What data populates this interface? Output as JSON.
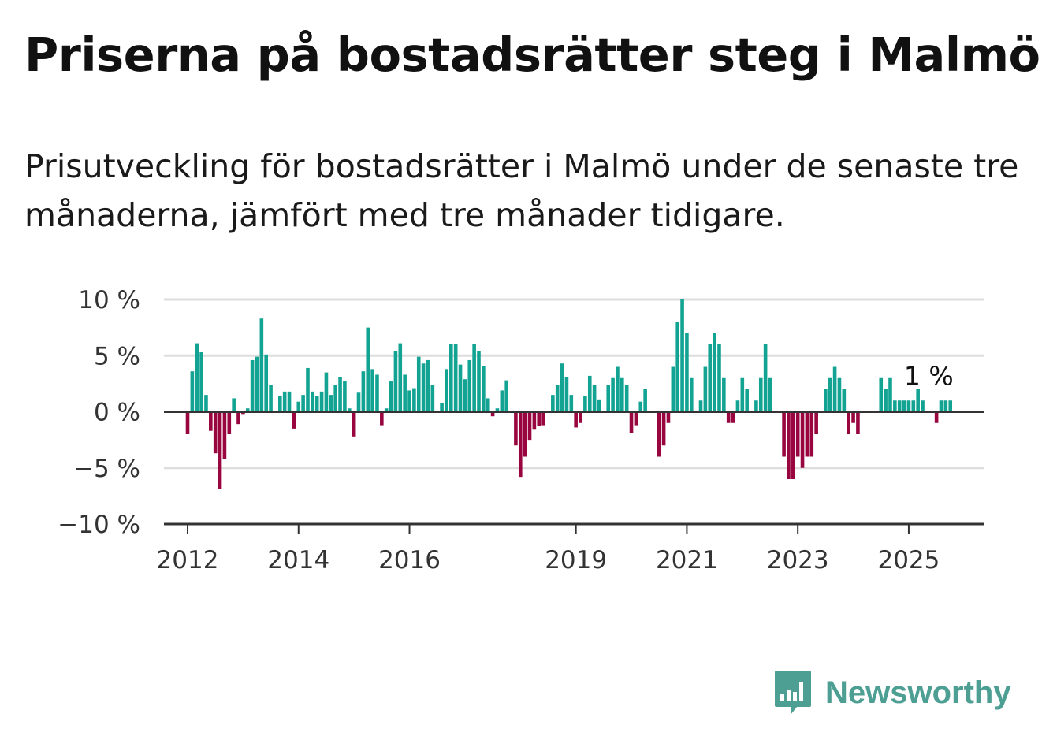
{
  "title": "Priserna på bostadsrätter steg i Malmö",
  "subtitle": "Prisutveckling för bostadsrätter i Malmö under de senaste tre månaderna, jämfört med tre månader tidigare.",
  "brand": {
    "name": "Newsworthy",
    "icon": "bar-chart-speech-bubble-icon",
    "color": "#4d9e93"
  },
  "colors": {
    "positive": "#13a393",
    "negative": "#98053f",
    "grid": "#dddddd",
    "axis": "#333333"
  },
  "chart_data": {
    "type": "bar",
    "title": "Priserna på bostadsrätter steg i Malmö",
    "xlabel": "",
    "ylabel": "",
    "ylim": [
      -10,
      10
    ],
    "y_ticks": [
      10,
      5,
      0,
      -5,
      -10
    ],
    "y_tick_labels": [
      "10 %",
      "5 %",
      "0 %",
      "−5 %",
      "−10 %"
    ],
    "x_tick_labels": [
      "2012",
      "2014",
      "2016",
      "2019",
      "2021",
      "2023",
      "2025"
    ],
    "x_tick_values": [
      "2012-01",
      "2014-01",
      "2016-01",
      "2019-01",
      "2021-01",
      "2023-01",
      "2025-01"
    ],
    "start_month": "2012-01",
    "grid": true,
    "legend": "none",
    "annotation": {
      "text": "1 %",
      "at": "2025-06"
    },
    "values": [
      -2.0,
      3.6,
      6.1,
      5.3,
      1.5,
      -1.7,
      -3.7,
      -6.9,
      -4.2,
      -2.0,
      1.2,
      -1.1,
      -0.2,
      0.3,
      4.6,
      4.9,
      8.3,
      5.1,
      2.4,
      0.0,
      1.4,
      1.8,
      1.8,
      -1.5,
      0.9,
      1.5,
      3.9,
      1.8,
      1.4,
      1.8,
      3.5,
      1.5,
      2.4,
      3.1,
      2.7,
      0.3,
      -2.2,
      1.7,
      3.6,
      7.5,
      3.8,
      3.3,
      -1.2,
      0.3,
      2.7,
      5.4,
      6.1,
      3.3,
      1.9,
      2.1,
      4.9,
      4.3,
      4.6,
      2.4,
      0.0,
      0.8,
      3.8,
      6.0,
      6.0,
      4.2,
      2.9,
      4.6,
      6.0,
      5.4,
      4.1,
      1.2,
      -0.4,
      0.3,
      1.9,
      2.8,
      0.0,
      -3.0,
      -5.8,
      -4.0,
      -2.5,
      -1.6,
      -1.3,
      -1.2,
      0.0,
      1.5,
      2.4,
      4.3,
      3.1,
      1.5,
      -1.4,
      -1.0,
      1.4,
      3.2,
      2.4,
      1.1,
      0.0,
      2.4,
      3.0,
      4.0,
      3.0,
      2.4,
      -1.9,
      -1.2,
      0.9,
      2.0,
      0.0,
      0.0,
      -4.0,
      -3.0,
      -1.0,
      4.0,
      8.0,
      10.0,
      7.0,
      3.0,
      0.0,
      1.0,
      4.0,
      6.0,
      7.0,
      6.0,
      3.0,
      -1.0,
      -1.0,
      1.0,
      3.0,
      2.0,
      0.0,
      1.0,
      3.0,
      6.0,
      3.0,
      0.0,
      0.0,
      -4.0,
      -6.0,
      -6.0,
      -4.0,
      -5.0,
      -4.0,
      -4.0,
      -2.0,
      0.0,
      2.0,
      3.0,
      4.0,
      3.0,
      2.0,
      -2.0,
      -1.0,
      -2.0,
      0.0,
      0.0,
      0.0,
      0.0,
      3.0,
      2.0,
      3.0,
      1.0,
      1.0,
      1.0,
      1.0,
      1.0,
      2.0,
      1.0,
      0.0,
      0.0,
      -1.0,
      1.0,
      1.0,
      1.0
    ]
  }
}
